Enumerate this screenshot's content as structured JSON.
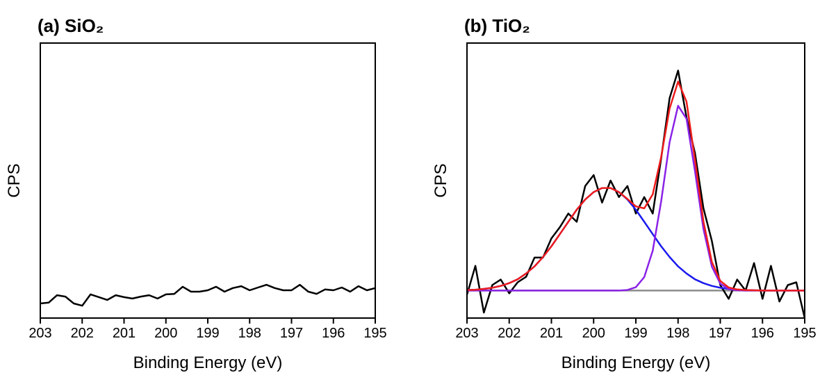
{
  "chart_data": [
    {
      "type": "line",
      "title": "(a) SiO₂",
      "xlabel": "Binding Energy (eV)",
      "ylabel": "CPS",
      "x": [
        203,
        202.8,
        202.6,
        202.4,
        202.2,
        202,
        201.8,
        201.6,
        201.4,
        201.2,
        201,
        200.8,
        200.6,
        200.4,
        200.2,
        200,
        199.8,
        199.6,
        199.4,
        199.2,
        199,
        198.8,
        198.6,
        198.4,
        198.2,
        198,
        197.8,
        197.6,
        197.4,
        197.2,
        197,
        196.8,
        196.6,
        196.4,
        196.2,
        196,
        195.8,
        195.6,
        195.4,
        195.2,
        195
      ],
      "series": [
        {
          "color": "#000000",
          "values": [
            5.3,
            5.6,
            8.3,
            7.8,
            5.3,
            4.5,
            8.6,
            7.6,
            6.6,
            8.3,
            7.6,
            7.1,
            7.8,
            8.3,
            7.1,
            8.6,
            8.8,
            11.4,
            9.6,
            9.6,
            10.1,
            11.4,
            9.6,
            10.9,
            11.6,
            10.1,
            11.1,
            12.1,
            10.9,
            10.1,
            10.1,
            12.1,
            9.6,
            8.8,
            10.4,
            10.1,
            11.1,
            9.6,
            11.6,
            10.1,
            10.9
          ]
        }
      ],
      "xlim": [
        203,
        195
      ],
      "ylim": [
        0,
        100
      ],
      "xticks": [
        203,
        202,
        201,
        200,
        199,
        198,
        197,
        196,
        195
      ]
    },
    {
      "type": "line",
      "title": "(b) TiO₂",
      "xlabel": "Binding Energy (eV)",
      "ylabel": "CPS",
      "x": [
        203,
        202.8,
        202.6,
        202.4,
        202.2,
        202,
        201.8,
        201.6,
        201.4,
        201.2,
        201,
        200.8,
        200.6,
        200.4,
        200.2,
        200,
        199.8,
        199.6,
        199.4,
        199.2,
        199,
        198.8,
        198.6,
        198.4,
        198.2,
        198,
        197.8,
        197.6,
        197.4,
        197.2,
        197,
        196.8,
        196.6,
        196.4,
        196.2,
        196,
        195.8,
        195.6,
        195.4,
        195.2,
        195
      ],
      "series": [
        {
          "color": "#8c8c8c",
          "values": [
            10,
            10,
            10,
            10,
            10,
            10,
            10,
            10,
            10,
            10,
            10,
            10,
            10,
            10,
            10,
            10,
            10,
            10,
            10,
            10,
            10,
            10,
            10,
            10,
            10,
            10,
            10,
            10,
            10,
            10,
            10,
            10,
            10,
            10,
            10,
            10,
            10,
            10,
            10,
            10,
            10
          ]
        },
        {
          "color": "#000000",
          "values": [
            8.5,
            19,
            2,
            12,
            14,
            9,
            13,
            15,
            22,
            22,
            29,
            33,
            38,
            35,
            48,
            52,
            42,
            50,
            44,
            48,
            38,
            44,
            38,
            58,
            80,
            90,
            73,
            60,
            40,
            28,
            12,
            7,
            14,
            10,
            20,
            7,
            19,
            6,
            12,
            13,
            0
          ]
        },
        {
          "color": "#1a1aee",
          "values": [
            10.2,
            10.3,
            10.6,
            11.0,
            11.7,
            12.7,
            14.1,
            16.2,
            18.8,
            22.2,
            26.1,
            30.5,
            35.0,
            39.4,
            43.1,
            45.8,
            47.3,
            47.3,
            45.8,
            43.1,
            39.4,
            35.0,
            30.5,
            26.1,
            22.2,
            18.8,
            16.2,
            14.1,
            12.7,
            11.7,
            11.0,
            10.6,
            10.3,
            10.2,
            10.1,
            10.0,
            10.0,
            10.0,
            10.0,
            10.0,
            10.0
          ]
        },
        {
          "color": "#8a22e6",
          "values": [
            10,
            10,
            10,
            10,
            10,
            10,
            10,
            10,
            10,
            10,
            10,
            10,
            10,
            10,
            10,
            10,
            10,
            10,
            10.0,
            10.2,
            11.2,
            14.9,
            24.5,
            42.4,
            64.0,
            77.2,
            72.5,
            53.4,
            32.5,
            18.7,
            12.5,
            10.5,
            10.1,
            10,
            10,
            10,
            10,
            10,
            10,
            10,
            10
          ]
        },
        {
          "color": "#ee1c1c",
          "values": [
            10.2,
            10.3,
            10.6,
            11.0,
            11.7,
            12.7,
            14.1,
            16.2,
            18.8,
            22.2,
            26.1,
            30.5,
            35.0,
            39.4,
            43.1,
            45.8,
            47.3,
            47.3,
            45.8,
            43.3,
            40.6,
            39.9,
            45.0,
            58.5,
            76.2,
            86.0,
            78.7,
            57.5,
            35.2,
            20.4,
            13.5,
            11.1,
            10.4,
            10.2,
            10.1,
            10.0,
            10.0,
            10.0,
            10.0,
            10.0,
            10.0
          ]
        }
      ],
      "xlim": [
        203,
        195
      ],
      "ylim": [
        0,
        100
      ],
      "xticks": [
        203,
        202,
        201,
        200,
        199,
        198,
        197,
        196,
        195
      ]
    }
  ]
}
